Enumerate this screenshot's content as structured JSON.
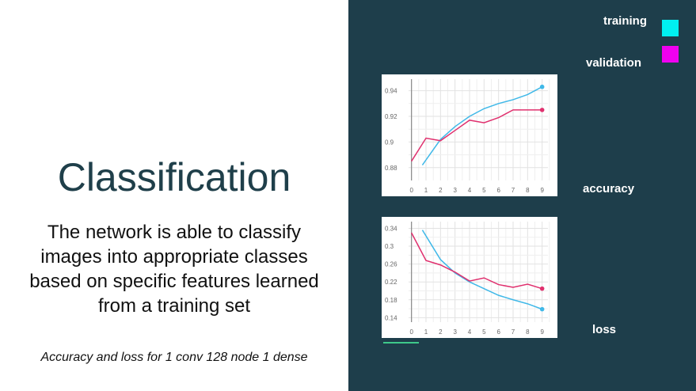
{
  "slide": {
    "title": "Classification",
    "body": "The network is able to classify images into appropriate classes based on specific features learned from a training set",
    "caption": "Accuracy and loss for 1 conv 128 node 1 dense"
  },
  "legend": [
    {
      "label": "training",
      "color": "#00f0f0"
    },
    {
      "label": "validation",
      "color": "#f000f0"
    }
  ],
  "chart_data": [
    {
      "type": "line",
      "title": "",
      "label": "accuracy",
      "x": [
        0,
        1,
        2,
        3,
        4,
        5,
        6,
        7,
        8,
        9
      ],
      "xlim": [
        -0.2,
        9.4
      ],
      "ylim": [
        0.87,
        0.949
      ],
      "yticks": [
        0.88,
        0.9,
        0.92,
        0.94
      ],
      "ytick_labels": [
        "0.88",
        "0.9",
        "0.92",
        "0.94"
      ],
      "series": [
        {
          "values": [
            null,
            0.886,
            0.902,
            0.912,
            0.92,
            0.926,
            0.93,
            0.933,
            0.937,
            0.943
          ],
          "color": "#3fb8e8"
        },
        {
          "values": [
            0.885,
            0.903,
            0.901,
            0.909,
            0.917,
            0.915,
            0.919,
            0.925,
            0.925,
            0.925
          ],
          "color": "#e0306e"
        }
      ]
    },
    {
      "type": "line",
      "title": "",
      "label": "loss",
      "x": [
        0,
        1,
        2,
        3,
        4,
        5,
        6,
        7,
        8,
        9
      ],
      "xlim": [
        -0.2,
        9.4
      ],
      "ylim": [
        0.13,
        0.355
      ],
      "yticks": [
        0.14,
        0.18,
        0.22,
        0.26,
        0.3,
        0.34
      ],
      "ytick_labels": [
        "0.14",
        "0.18",
        "0.22",
        "0.26",
        "0.3",
        "0.34"
      ],
      "series": [
        {
          "values": [
            null,
            0.323,
            0.27,
            0.24,
            0.22,
            0.205,
            0.19,
            0.18,
            0.171,
            0.159
          ],
          "color": "#3fb8e8"
        },
        {
          "values": [
            0.33,
            0.268,
            0.258,
            0.242,
            0.222,
            0.229,
            0.214,
            0.208,
            0.215,
            0.205
          ],
          "color": "#e0306e"
        }
      ]
    }
  ]
}
